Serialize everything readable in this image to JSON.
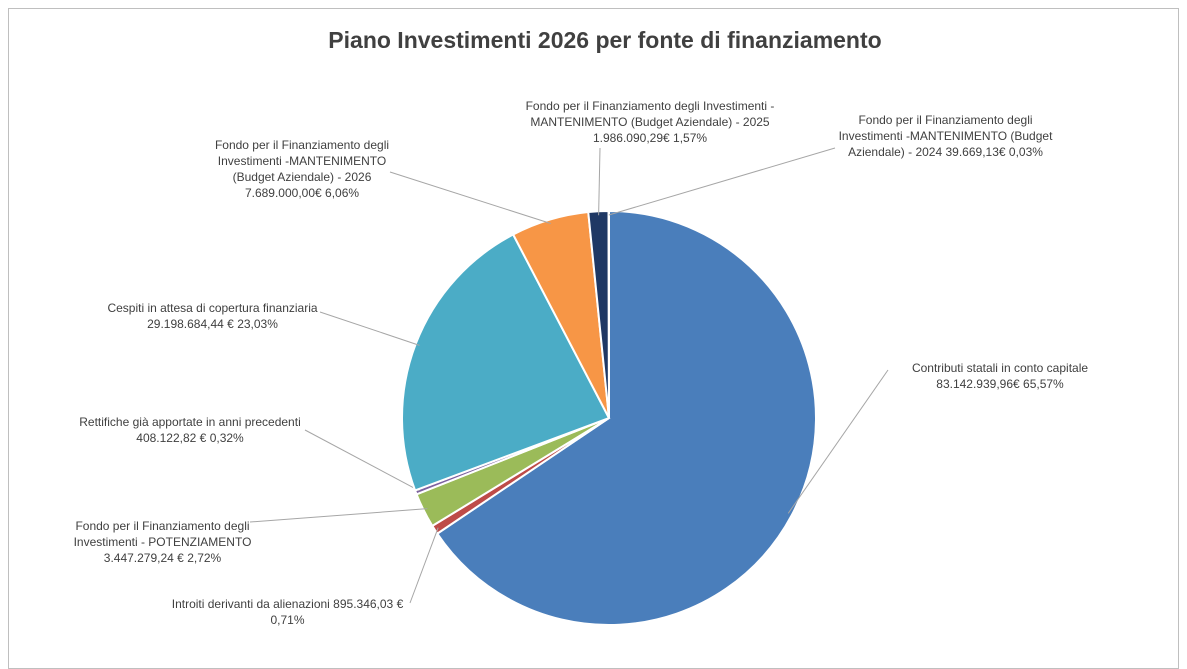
{
  "chart_data": {
    "type": "pie",
    "title": "Piano Investimenti 2026 per fonte di finanziamento",
    "categories": [
      "Contributi statali in conto capitale",
      "Introiti derivanti da alienazioni",
      "Fondo per il Finanziamento degli Investimenti - POTENZIAMENTO",
      "Rettifiche già apportate in anni precedenti",
      "Cespiti in attesa di copertura finanziaria",
      "Fondo per il Finanziamento degli Investimenti -MANTENIMENTO (Budget Aziendale) - 2026",
      "Fondo per il Finanziamento degli Investimenti -MANTENIMENTO (Budget Aziendale) - 2025",
      "Fondo per il Finanziamento degli Investimenti -MANTENIMENTO (Budget Aziendale) - 2024"
    ],
    "values": [
      83142939.96,
      895346.03,
      3447279.24,
      408122.82,
      29198684.44,
      7689000.0,
      1986090.29,
      39669.13
    ],
    "value_labels": [
      "83.142.939,96€",
      "895.346,03 €",
      "3.447.279,24 €",
      "408.122,82 €",
      "29.198.684,44 €",
      "7.689.000,00€",
      "1.986.090,29€",
      "39.669,13€"
    ],
    "percents": [
      65.57,
      0.71,
      2.72,
      0.32,
      23.03,
      6.06,
      1.57,
      0.03
    ],
    "percent_labels": [
      "65,57%",
      "0,71%",
      "2,72%",
      "0,32%",
      "23,03%",
      "6,06%",
      "1,57%",
      "0,03%"
    ],
    "colors": [
      "#4a7ebb",
      "#be4b48",
      "#9bbb59",
      "#7d60a0",
      "#4bacc6",
      "#f79646",
      "#1f3864",
      "#8eb4e3"
    ]
  }
}
